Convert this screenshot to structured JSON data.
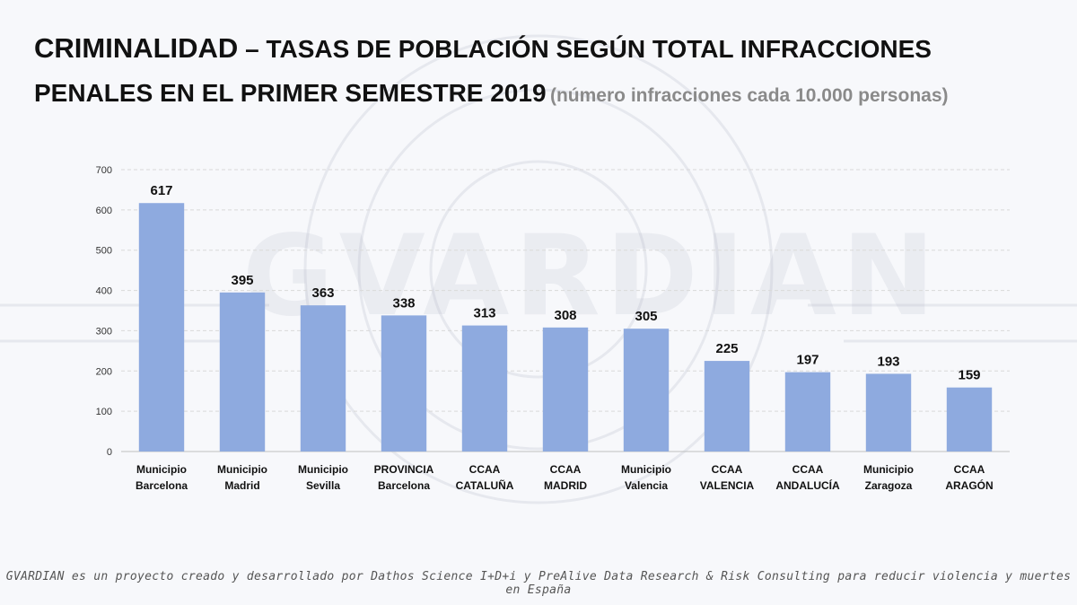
{
  "title": {
    "part1": "CRIMINALIDAD",
    "part2": " – TASAS DE POBLACIÓN SEGÚN TOTAL INFRACCIONES",
    "part3": "PENALES EN EL PRIMER SEMESTRE 2019",
    "part4": "(número infracciones cada 10.000 personas)"
  },
  "watermark": "GVARDIAN",
  "footer": "GVARDIAN es un proyecto creado y desarrollado por Dathos Science I+D+i y PreAlive Data Research & Risk Consulting para reducir violencia y muertes en España",
  "colors": {
    "bar": "#8eaadf",
    "grid": "#d9d9d9",
    "text": "#111111"
  },
  "chart_data": {
    "type": "bar",
    "categories": [
      [
        "Municipio",
        "Barcelona"
      ],
      [
        "Municipio",
        "Madrid"
      ],
      [
        "Municipio",
        "Sevilla"
      ],
      [
        "PROVINCIA",
        "Barcelona"
      ],
      [
        "CCAA",
        "CATALUÑA"
      ],
      [
        "CCAA",
        "MADRID"
      ],
      [
        "Municipio",
        "Valencia"
      ],
      [
        "CCAA",
        "VALENCIA"
      ],
      [
        "CCAA",
        "ANDALUCÍA"
      ],
      [
        "Municipio",
        "Zaragoza"
      ],
      [
        "CCAA",
        "ARAGÓN"
      ]
    ],
    "values": [
      617,
      395,
      363,
      338,
      313,
      308,
      305,
      225,
      197,
      193,
      159
    ],
    "ylim": [
      0,
      700
    ],
    "yticks": [
      0,
      100,
      200,
      300,
      400,
      500,
      600,
      700
    ],
    "grid": true,
    "data_labels": true
  }
}
